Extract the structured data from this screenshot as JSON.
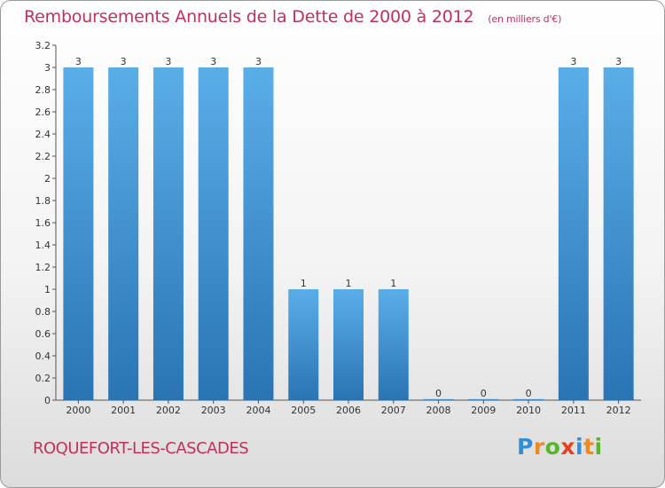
{
  "chart_data": {
    "type": "bar",
    "title": "Remboursements Annuels de la Dette de 2000 à 2012",
    "subtitle": "(en milliers d'€)",
    "categories": [
      "2000",
      "2001",
      "2002",
      "2003",
      "2004",
      "2005",
      "2006",
      "2007",
      "2008",
      "2009",
      "2010",
      "2011",
      "2012"
    ],
    "values": [
      3,
      3,
      3,
      3,
      3,
      1,
      1,
      1,
      0,
      0,
      0,
      3,
      3
    ],
    "data_labels": [
      "3",
      "3",
      "3",
      "3",
      "3",
      "1",
      "1",
      "1",
      "0",
      "0",
      "0",
      "3",
      "3"
    ],
    "ylim": [
      0,
      3.2
    ],
    "yticks": [
      {
        "value": 0,
        "label": "0"
      },
      {
        "value": 0.2,
        "label": "0.2"
      },
      {
        "value": 0.4,
        "label": "0.4"
      },
      {
        "value": 0.6,
        "label": "0.6"
      },
      {
        "value": 0.8,
        "label": "0.8"
      },
      {
        "value": 1,
        "label": "1"
      },
      {
        "value": 1.2,
        "label": "1.2"
      },
      {
        "value": 1.4,
        "label": "1.4"
      },
      {
        "value": 1.6,
        "label": "1.6"
      },
      {
        "value": 1.8,
        "label": "1.8"
      },
      {
        "value": 2,
        "label": "2"
      },
      {
        "value": 2.2,
        "label": "2.2"
      },
      {
        "value": 2.4,
        "label": "2.4"
      },
      {
        "value": 2.6,
        "label": "2.6"
      },
      {
        "value": 2.8,
        "label": "2.8"
      },
      {
        "value": 3,
        "label": "3"
      },
      {
        "value": 3.2,
        "label": "3.2"
      }
    ],
    "xlabel": "",
    "ylabel": "",
    "grid": false,
    "bar_color": "#3d8fd6"
  },
  "footer": {
    "town": "ROQUEFORT-LES-CASCADES",
    "brand": [
      {
        "char": "P",
        "color": "#2f8fd8"
      },
      {
        "char": "r",
        "color": "#f08a1c"
      },
      {
        "char": "o",
        "color": "#59b52a"
      },
      {
        "char": "x",
        "color": "#e8401c"
      },
      {
        "char": "i",
        "color": "#2f8fd8"
      },
      {
        "char": "t",
        "color": "#f08a1c"
      },
      {
        "char": "i",
        "color": "#59b52a"
      }
    ]
  }
}
